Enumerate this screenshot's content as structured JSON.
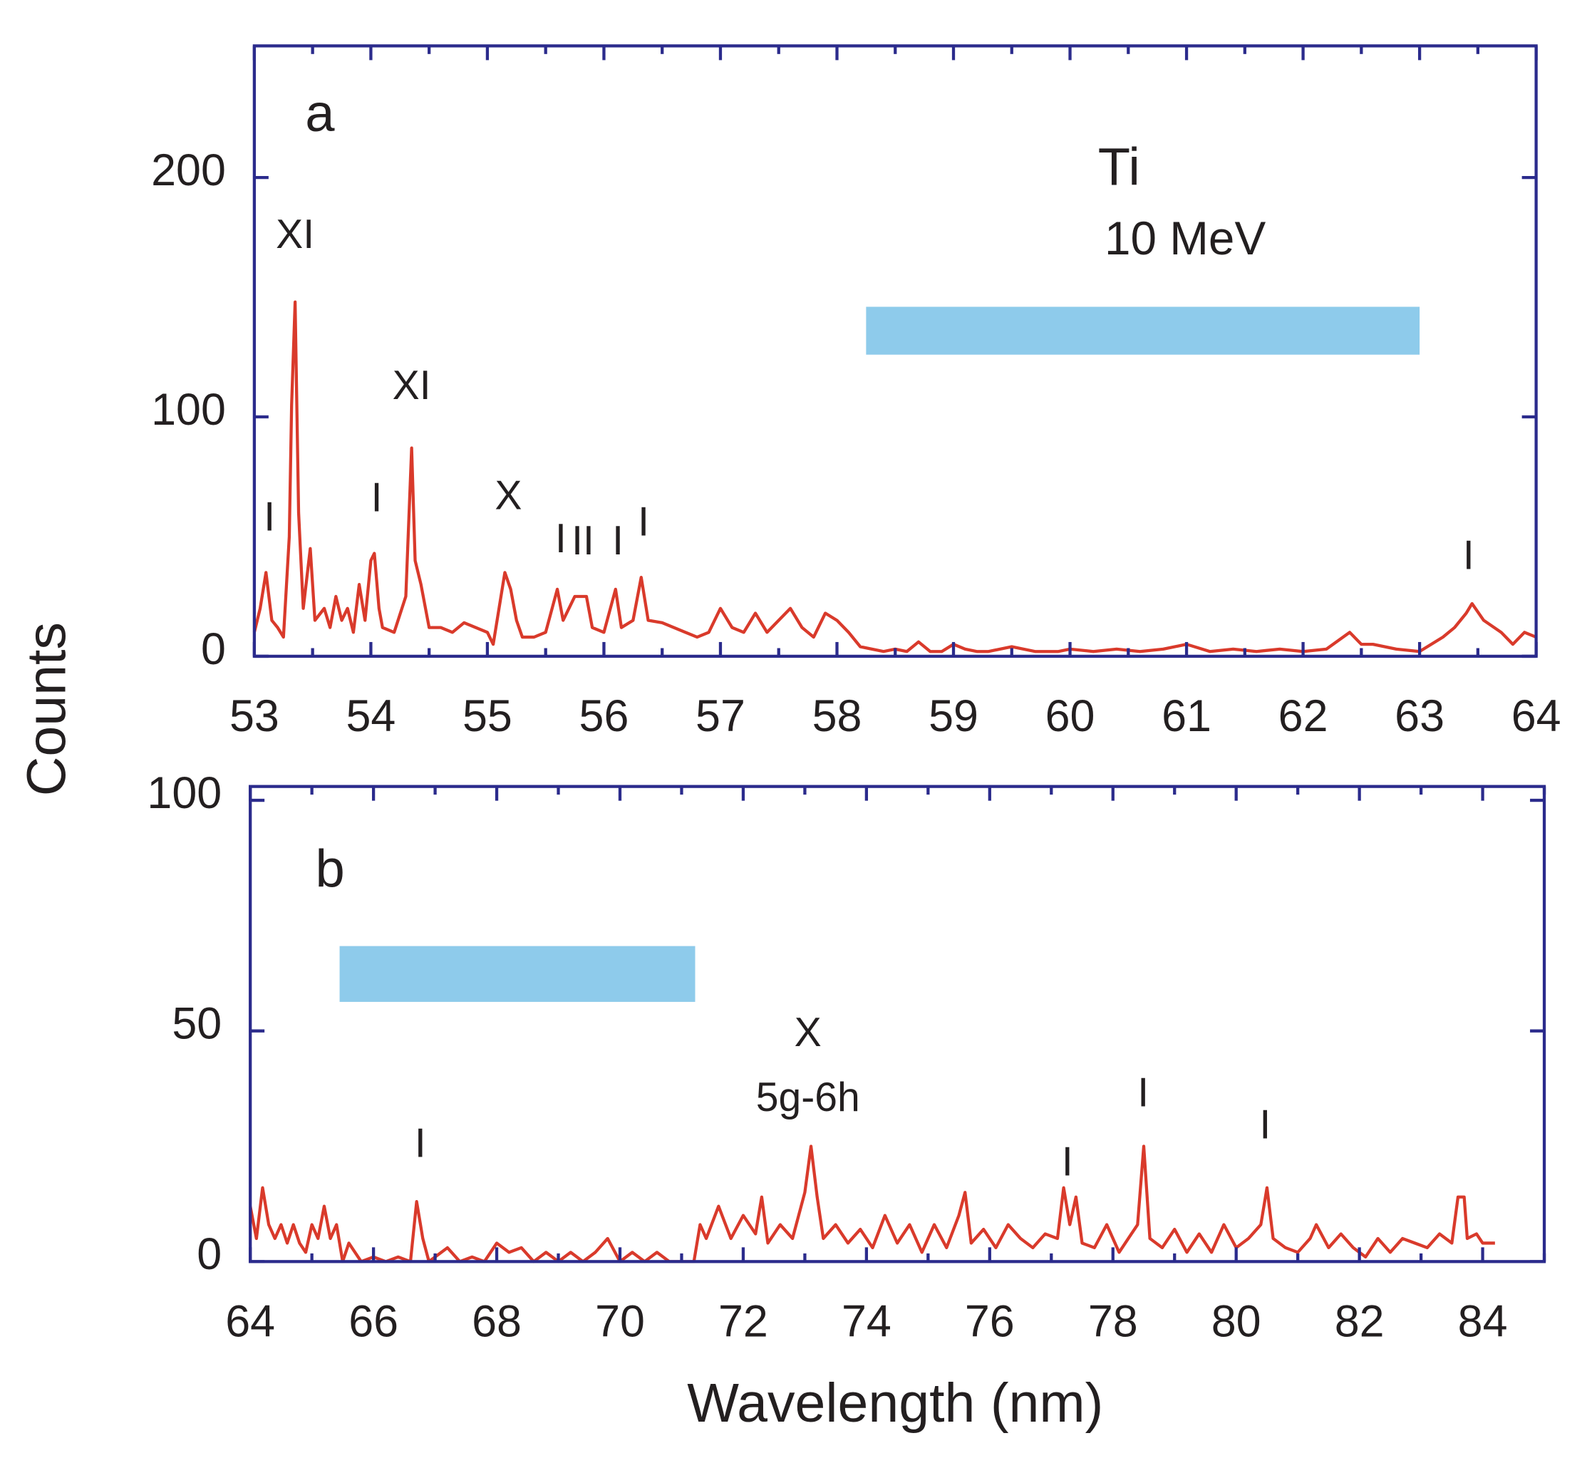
{
  "chart_data": [
    {
      "type": "line",
      "panel_label": "a",
      "title": "Ti",
      "subtitle": "10 MeV",
      "ylabel": "Counts",
      "color": "#d93a2b",
      "xlim": [
        53,
        64
      ],
      "ylim": [
        0,
        255
      ],
      "xticks": [
        53,
        54,
        55,
        56,
        57,
        58,
        59,
        60,
        61,
        62,
        63,
        64
      ],
      "xminorticks": [
        53.5,
        54.5,
        55.5,
        56.5,
        57.5,
        58.5,
        59.5,
        60.5,
        61.5,
        62.5,
        63.5
      ],
      "yticks": [
        0,
        100,
        200
      ],
      "x": [
        53.0,
        53.05,
        53.1,
        53.15,
        53.2,
        53.25,
        53.3,
        53.32,
        53.35,
        53.38,
        53.42,
        53.48,
        53.52,
        53.6,
        53.65,
        53.7,
        53.75,
        53.8,
        53.85,
        53.9,
        53.95,
        54.0,
        54.03,
        54.07,
        54.1,
        54.2,
        54.3,
        54.35,
        54.38,
        54.43,
        54.5,
        54.6,
        54.7,
        54.8,
        54.9,
        55.0,
        55.05,
        55.1,
        55.15,
        55.2,
        55.25,
        55.3,
        55.4,
        55.5,
        55.6,
        55.65,
        55.75,
        55.85,
        55.9,
        56.0,
        56.1,
        56.15,
        56.25,
        56.32,
        56.38,
        56.5,
        56.6,
        56.7,
        56.8,
        56.9,
        57.0,
        57.1,
        57.2,
        57.3,
        57.4,
        57.5,
        57.6,
        57.7,
        57.8,
        57.9,
        58.0,
        58.1,
        58.2,
        58.3,
        58.4,
        58.5,
        58.6,
        58.7,
        58.8,
        58.9,
        59.0,
        59.1,
        59.2,
        59.3,
        59.5,
        59.7,
        59.9,
        60.0,
        60.2,
        60.4,
        60.6,
        60.8,
        61.0,
        61.2,
        61.4,
        61.6,
        61.8,
        62.0,
        62.2,
        62.4,
        62.5,
        62.6,
        62.8,
        63.0,
        63.2,
        63.3,
        63.4,
        63.45,
        63.55,
        63.7,
        63.8,
        63.9,
        64.0
      ],
      "values": [
        10,
        20,
        35,
        15,
        12,
        8,
        50,
        105,
        148,
        60,
        20,
        45,
        15,
        20,
        12,
        25,
        15,
        20,
        10,
        30,
        15,
        40,
        43,
        20,
        12,
        10,
        25,
        87,
        40,
        30,
        12,
        12,
        10,
        14,
        12,
        10,
        5,
        20,
        35,
        28,
        15,
        8,
        8,
        10,
        28,
        15,
        25,
        25,
        12,
        10,
        28,
        12,
        15,
        33,
        15,
        14,
        12,
        10,
        8,
        10,
        20,
        12,
        10,
        18,
        10,
        15,
        20,
        12,
        8,
        18,
        15,
        10,
        4,
        3,
        2,
        3,
        2,
        6,
        2,
        2,
        5,
        3,
        2,
        2,
        4,
        2,
        2,
        3,
        2,
        3,
        2,
        3,
        5,
        2,
        3,
        2,
        3,
        2,
        3,
        10,
        5,
        5,
        3,
        2,
        8,
        12,
        18,
        22,
        15,
        10,
        5,
        10,
        8
      ],
      "highlight": {
        "x": [
          58.25,
          63
        ],
        "y": [
          126,
          146
        ],
        "color": "#8ecbeb"
      },
      "annotations": [
        {
          "text": "XI",
          "x": 53.35,
          "y": 175
        },
        {
          "text": "XI",
          "x": 54.35,
          "y": 112
        },
        {
          "text": "I",
          "x": 53.13,
          "y": 57
        },
        {
          "text": "I",
          "x": 54.05,
          "y": 65
        },
        {
          "text": "X",
          "x": 55.18,
          "y": 66
        },
        {
          "text": "I",
          "x": 55.63,
          "y": 48
        },
        {
          "text": "II",
          "x": 55.82,
          "y": 47
        },
        {
          "text": "I",
          "x": 56.12,
          "y": 47
        },
        {
          "text": "I",
          "x": 56.34,
          "y": 55
        },
        {
          "text": "I",
          "x": 63.42,
          "y": 41
        }
      ]
    },
    {
      "type": "line",
      "panel_label": "b",
      "xlabel": "Wavelength (nm)",
      "color": "#d93a2b",
      "xlim": [
        64,
        85
      ],
      "ylim": [
        0,
        103
      ],
      "xticks": [
        64,
        66,
        68,
        70,
        72,
        74,
        76,
        78,
        80,
        82,
        84
      ],
      "xminorticks": [
        65,
        67,
        69,
        71,
        73,
        75,
        77,
        79,
        81,
        83,
        85
      ],
      "yticks": [
        0,
        50,
        100
      ],
      "x": [
        64.0,
        64.1,
        64.2,
        64.3,
        64.4,
        64.5,
        64.6,
        64.7,
        64.8,
        64.9,
        65.0,
        65.1,
        65.2,
        65.3,
        65.4,
        65.5,
        65.6,
        65.8,
        66.0,
        66.2,
        66.4,
        66.6,
        66.7,
        66.8,
        66.9,
        67.0,
        67.2,
        67.4,
        67.6,
        67.8,
        68.0,
        68.2,
        68.4,
        68.6,
        68.8,
        69.0,
        69.2,
        69.4,
        69.6,
        69.8,
        70.0,
        70.2,
        70.4,
        70.6,
        70.8,
        71.0,
        71.2,
        71.3,
        71.4,
        71.6,
        71.8,
        72.0,
        72.2,
        72.3,
        72.4,
        72.6,
        72.8,
        73.0,
        73.1,
        73.2,
        73.3,
        73.5,
        73.7,
        73.9,
        74.1,
        74.3,
        74.5,
        74.7,
        74.9,
        75.1,
        75.3,
        75.5,
        75.6,
        75.7,
        75.9,
        76.1,
        76.3,
        76.5,
        76.7,
        76.9,
        77.1,
        77.2,
        77.3,
        77.4,
        77.5,
        77.7,
        77.9,
        78.1,
        78.3,
        78.4,
        78.5,
        78.6,
        78.8,
        79.0,
        79.2,
        79.4,
        79.6,
        79.8,
        80.0,
        80.2,
        80.4,
        80.5,
        80.6,
        80.8,
        81.0,
        81.2,
        81.3,
        81.5,
        81.7,
        81.9,
        82.1,
        82.3,
        82.5,
        82.7,
        82.9,
        83.1,
        83.3,
        83.5,
        83.6,
        83.7,
        83.75,
        83.9,
        84.0,
        84.2
      ],
      "values": [
        12,
        5,
        16,
        8,
        5,
        8,
        4,
        8,
        4,
        2,
        8,
        5,
        12,
        5,
        8,
        0,
        4,
        0,
        1,
        0,
        1,
        0,
        13,
        5,
        0,
        1,
        3,
        0,
        1,
        0,
        4,
        2,
        3,
        0,
        2,
        0,
        2,
        0,
        2,
        5,
        0,
        2,
        0,
        2,
        0,
        0,
        0,
        8,
        5,
        12,
        5,
        10,
        6,
        14,
        4,
        8,
        5,
        15,
        25,
        14,
        5,
        8,
        4,
        7,
        3,
        10,
        4,
        8,
        2,
        8,
        3,
        10,
        15,
        4,
        7,
        3,
        8,
        5,
        3,
        6,
        5,
        16,
        8,
        14,
        4,
        3,
        8,
        2,
        6,
        8,
        25,
        5,
        3,
        7,
        2,
        6,
        2,
        8,
        3,
        5,
        8,
        16,
        5,
        3,
        2,
        5,
        8,
        3,
        6,
        3,
        1,
        5,
        2,
        5,
        4,
        3,
        6,
        4,
        14,
        14,
        5,
        6,
        4,
        4
      ],
      "highlight": {
        "x": [
          65.45,
          71.22
        ],
        "y": [
          56.3,
          68.4
        ],
        "color": "#8ecbeb"
      },
      "annotations": [
        {
          "text": "X",
          "x": 73.05,
          "y": 49
        },
        {
          "text": "5g-6h",
          "x": 73.05,
          "y": 35
        },
        {
          "text": "I",
          "x": 66.76,
          "y": 25
        },
        {
          "text": "I",
          "x": 77.26,
          "y": 21
        },
        {
          "text": "I",
          "x": 78.49,
          "y": 36
        },
        {
          "text": "I",
          "x": 80.47,
          "y": 29
        }
      ]
    }
  ]
}
